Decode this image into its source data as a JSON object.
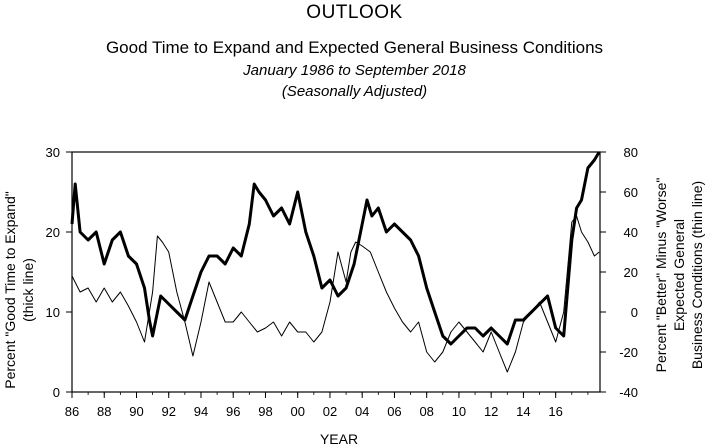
{
  "header": {
    "section": "OUTLOOK",
    "title": "Good Time to Expand and Expected General Business Conditions",
    "subtitle": "January 1986 to September 2018",
    "note": "(Seasonally Adjusted)"
  },
  "chart_data": {
    "type": "line",
    "xlabel": "YEAR",
    "x_ticks": [
      "86",
      "88",
      "90",
      "92",
      "94",
      "96",
      "98",
      "00",
      "02",
      "04",
      "06",
      "08",
      "10",
      "12",
      "14",
      "16"
    ],
    "x_range": [
      1986,
      2018.75
    ],
    "left_axis": {
      "label_line1": "Percent \"Good Time to Expand\"",
      "label_line2": "(thick line)",
      "ylim": [
        0,
        30
      ],
      "ticks": [
        "0",
        "10",
        "20",
        "30"
      ]
    },
    "right_axis": {
      "label_line1": "Percent \"Better\" Minus \"Worse\"",
      "label_line2": "Expected General",
      "label_line3": "Business Conditions (thin line)",
      "ylim": [
        -40,
        80
      ],
      "ticks": [
        "-40",
        "-20",
        "0",
        "20",
        "40",
        "60",
        "80"
      ]
    },
    "series": [
      {
        "name": "Good Time to Expand",
        "axis": "left",
        "style": "thick",
        "x": [
          1986.0,
          1986.2,
          1986.5,
          1987.0,
          1987.5,
          1988.0,
          1988.5,
          1989.0,
          1989.5,
          1990.0,
          1990.5,
          1990.8,
          1991.0,
          1991.5,
          1992.0,
          1992.5,
          1993.0,
          1993.5,
          1994.0,
          1994.5,
          1995.0,
          1995.5,
          1996.0,
          1996.5,
          1997.0,
          1997.3,
          1997.6,
          1998.0,
          1998.5,
          1999.0,
          1999.5,
          2000.0,
          2000.5,
          2001.0,
          2001.5,
          2002.0,
          2002.5,
          2003.0,
          2003.5,
          2004.0,
          2004.3,
          2004.6,
          2005.0,
          2005.5,
          2006.0,
          2006.5,
          2007.0,
          2007.5,
          2008.0,
          2008.5,
          2009.0,
          2009.5,
          2010.0,
          2010.5,
          2011.0,
          2011.5,
          2012.0,
          2012.5,
          2013.0,
          2013.5,
          2014.0,
          2014.5,
          2015.0,
          2015.5,
          2016.0,
          2016.5,
          2017.0,
          2017.3,
          2017.6,
          2018.0,
          2018.4,
          2018.7
        ],
        "y": [
          21,
          26,
          20,
          19,
          20,
          16,
          19,
          20,
          17,
          16,
          13,
          9,
          7,
          12,
          11,
          10,
          9,
          12,
          15,
          17,
          17,
          16,
          18,
          17,
          21,
          26,
          25,
          24,
          22,
          23,
          21,
          25,
          20,
          17,
          13,
          14,
          12,
          13,
          16,
          21,
          24,
          22,
          23,
          20,
          21,
          20,
          19,
          17,
          13,
          10,
          7,
          6,
          7,
          8,
          8,
          7,
          8,
          7,
          6,
          9,
          9,
          10,
          11,
          12,
          8,
          7,
          19,
          23,
          24,
          28,
          29,
          30
        ]
      },
      {
        "name": "Expected General Business Conditions",
        "axis": "right",
        "style": "thin",
        "x": [
          1986.0,
          1986.5,
          1987.0,
          1987.5,
          1988.0,
          1988.5,
          1989.0,
          1989.5,
          1990.0,
          1990.5,
          1991.0,
          1991.3,
          1991.6,
          1992.0,
          1992.5,
          1993.0,
          1993.5,
          1994.0,
          1994.5,
          1995.0,
          1995.5,
          1996.0,
          1996.5,
          1997.0,
          1997.5,
          1998.0,
          1998.5,
          1999.0,
          1999.5,
          2000.0,
          2000.5,
          2001.0,
          2001.5,
          2002.0,
          2002.5,
          2003.0,
          2003.3,
          2003.6,
          2004.0,
          2004.5,
          2005.0,
          2005.5,
          2006.0,
          2006.5,
          2007.0,
          2007.5,
          2008.0,
          2008.5,
          2009.0,
          2009.5,
          2010.0,
          2010.5,
          2011.0,
          2011.5,
          2012.0,
          2012.5,
          2013.0,
          2013.5,
          2014.0,
          2014.5,
          2015.0,
          2015.5,
          2016.0,
          2016.5,
          2017.0,
          2017.3,
          2017.6,
          2018.0,
          2018.4,
          2018.7
        ],
        "y": [
          18,
          10,
          12,
          5,
          12,
          5,
          10,
          3,
          -5,
          -15,
          10,
          38,
          35,
          30,
          10,
          -5,
          -22,
          -5,
          15,
          5,
          -5,
          -5,
          0,
          -5,
          -10,
          -8,
          -5,
          -12,
          -5,
          -10,
          -10,
          -15,
          -10,
          5,
          30,
          15,
          30,
          35,
          33,
          30,
          20,
          10,
          2,
          -5,
          -10,
          -5,
          -20,
          -25,
          -20,
          -10,
          -5,
          -10,
          -15,
          -20,
          -10,
          -20,
          -30,
          -20,
          -5,
          0,
          5,
          -5,
          -15,
          0,
          45,
          48,
          40,
          35,
          28,
          30
        ]
      }
    ]
  }
}
